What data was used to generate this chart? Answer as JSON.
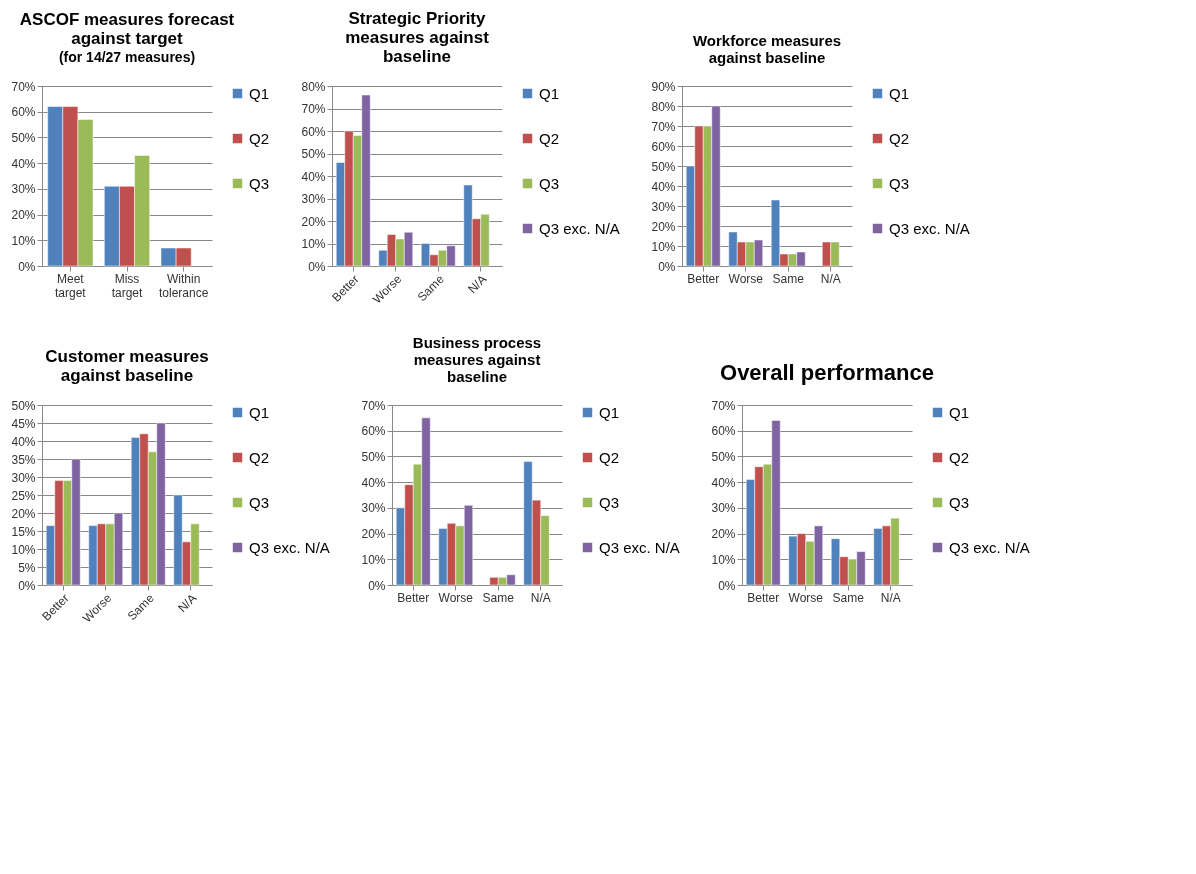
{
  "chart_data": [
    {
      "type": "bar",
      "title": "ASCOF measures forecast against target",
      "subtitle": "(for 14/27 measures)",
      "categories": [
        "Meet target",
        "Miss target",
        "Within tolerance"
      ],
      "series": [
        {
          "name": "Q1",
          "color": "#4f81bd",
          "values": [
            62,
            31,
            7
          ]
        },
        {
          "name": "Q2",
          "color": "#c0504d",
          "values": [
            62,
            31,
            7
          ]
        },
        {
          "name": "Q3",
          "color": "#9bbb59",
          "values": [
            57,
            43,
            null
          ]
        }
      ],
      "ylim": [
        0,
        70
      ],
      "yticks": [
        {
          "value": 0,
          "label": "0%"
        },
        {
          "value": 10,
          "label": "10%"
        },
        {
          "value": 20,
          "label": "20%"
        },
        {
          "value": 30,
          "label": "30%"
        },
        {
          "value": 40,
          "label": "40%"
        },
        {
          "value": 50,
          "label": "50%"
        },
        {
          "value": 60,
          "label": "60%"
        },
        {
          "value": 70,
          "label": "70%"
        }
      ],
      "grid": "y",
      "legend": "right"
    },
    {
      "type": "bar",
      "title": "Strategic Priority measures against baseline",
      "categories": [
        "Better",
        "Worse",
        "Same",
        "N/A"
      ],
      "series": [
        {
          "name": "Q1",
          "color": "#4f81bd",
          "values": [
            46,
            7,
            10,
            36
          ]
        },
        {
          "name": "Q2",
          "color": "#c0504d",
          "values": [
            60,
            14,
            5,
            21
          ]
        },
        {
          "name": "Q3",
          "color": "#9bbb59",
          "values": [
            58,
            12,
            7,
            23
          ]
        },
        {
          "name": "Q3 exc. N/A",
          "color": "#8064a2",
          "values": [
            76,
            15,
            9,
            null
          ]
        }
      ],
      "ylim": [
        0,
        80
      ],
      "yticks": [
        {
          "value": 0,
          "label": "0%"
        },
        {
          "value": 10,
          "label": "10%"
        },
        {
          "value": 20,
          "label": "20%"
        },
        {
          "value": 30,
          "label": "30%"
        },
        {
          "value": 40,
          "label": "40%"
        },
        {
          "value": 50,
          "label": "50%"
        },
        {
          "value": 60,
          "label": "60%"
        },
        {
          "value": 70,
          "label": "70%"
        },
        {
          "value": 80,
          "label": "80%"
        }
      ],
      "grid": "y",
      "legend": "right"
    },
    {
      "type": "bar",
      "title": "Workforce measures against baseline",
      "categories": [
        "Better",
        "Worse",
        "Same",
        "N/A"
      ],
      "series": [
        {
          "name": "Q1",
          "color": "#4f81bd",
          "values": [
            50,
            17,
            33,
            null
          ]
        },
        {
          "name": "Q2",
          "color": "#c0504d",
          "values": [
            70,
            12,
            6,
            12
          ]
        },
        {
          "name": "Q3",
          "color": "#9bbb59",
          "values": [
            70,
            12,
            6,
            12
          ]
        },
        {
          "name": "Q3 exc. N/A",
          "color": "#8064a2",
          "values": [
            80,
            13,
            7,
            null
          ]
        }
      ],
      "ylim": [
        0,
        90
      ],
      "yticks": [
        {
          "value": 0,
          "label": "0%"
        },
        {
          "value": 10,
          "label": "10%"
        },
        {
          "value": 20,
          "label": "20%"
        },
        {
          "value": 30,
          "label": "30%"
        },
        {
          "value": 40,
          "label": "40%"
        },
        {
          "value": 50,
          "label": "50%"
        },
        {
          "value": 60,
          "label": "60%"
        },
        {
          "value": 70,
          "label": "70%"
        },
        {
          "value": 80,
          "label": "80%"
        },
        {
          "value": 90,
          "label": "90%"
        }
      ],
      "grid": "y",
      "legend": "right"
    },
    {
      "type": "bar",
      "title": "Customer measures against baseline",
      "categories": [
        "Better",
        "Worse",
        "Same",
        "N/A"
      ],
      "series": [
        {
          "name": "Q1",
          "color": "#4f81bd",
          "values": [
            16.5,
            16.5,
            41,
            25
          ]
        },
        {
          "name": "Q2",
          "color": "#c0504d",
          "values": [
            29,
            17,
            42,
            12
          ]
        },
        {
          "name": "Q3",
          "color": "#9bbb59",
          "values": [
            29,
            17,
            37,
            17
          ]
        },
        {
          "name": "Q3 exc. N/A",
          "color": "#8064a2",
          "values": [
            35,
            20,
            45,
            null
          ]
        }
      ],
      "ylim": [
        0,
        50
      ],
      "yticks": [
        {
          "value": 0,
          "label": "0%"
        },
        {
          "value": 5,
          "label": "5%"
        },
        {
          "value": 10,
          "label": "10%"
        },
        {
          "value": 15,
          "label": "15%"
        },
        {
          "value": 20,
          "label": "20%"
        },
        {
          "value": 25,
          "label": "25%"
        },
        {
          "value": 30,
          "label": "30%"
        },
        {
          "value": 35,
          "label": "35%"
        },
        {
          "value": 40,
          "label": "40%"
        },
        {
          "value": 45,
          "label": "45%"
        },
        {
          "value": 50,
          "label": "50%"
        }
      ],
      "grid": "y",
      "legend": "right"
    },
    {
      "type": "bar",
      "title": "Business process measures against baseline",
      "categories": [
        "Better",
        "Worse",
        "Same",
        "N/A"
      ],
      "series": [
        {
          "name": "Q1",
          "color": "#4f81bd",
          "values": [
            30,
            22,
            null,
            48
          ]
        },
        {
          "name": "Q2",
          "color": "#c0504d",
          "values": [
            39,
            24,
            3,
            33
          ]
        },
        {
          "name": "Q3",
          "color": "#9bbb59",
          "values": [
            47,
            23,
            3,
            27
          ]
        },
        {
          "name": "Q3 exc. N/A",
          "color": "#8064a2",
          "values": [
            65,
            31,
            4,
            null
          ]
        }
      ],
      "ylim": [
        0,
        70
      ],
      "yticks": [
        {
          "value": 0,
          "label": "0%"
        },
        {
          "value": 10,
          "label": "10%"
        },
        {
          "value": 20,
          "label": "20%"
        },
        {
          "value": 30,
          "label": "30%"
        },
        {
          "value": 40,
          "label": "40%"
        },
        {
          "value": 50,
          "label": "50%"
        },
        {
          "value": 60,
          "label": "60%"
        },
        {
          "value": 70,
          "label": "70%"
        }
      ],
      "grid": "y",
      "legend": "right"
    },
    {
      "type": "bar",
      "title": "Overall performance",
      "categories": [
        "Better",
        "Worse",
        "Same",
        "N/A"
      ],
      "series": [
        {
          "name": "Q1",
          "color": "#4f81bd",
          "values": [
            41,
            19,
            18,
            22
          ]
        },
        {
          "name": "Q2",
          "color": "#c0504d",
          "values": [
            46,
            20,
            11,
            23
          ]
        },
        {
          "name": "Q3",
          "color": "#9bbb59",
          "values": [
            47,
            17,
            10,
            26
          ]
        },
        {
          "name": "Q3 exc. N/A",
          "color": "#8064a2",
          "values": [
            64,
            23,
            13,
            null
          ]
        }
      ],
      "ylim": [
        0,
        70
      ],
      "yticks": [
        {
          "value": 0,
          "label": "0%"
        },
        {
          "value": 10,
          "label": "10%"
        },
        {
          "value": 20,
          "label": "20%"
        },
        {
          "value": 30,
          "label": "30%"
        },
        {
          "value": 40,
          "label": "40%"
        },
        {
          "value": 50,
          "label": "50%"
        },
        {
          "value": 60,
          "label": "60%"
        },
        {
          "value": 70,
          "label": "70%"
        }
      ],
      "grid": "y",
      "legend": "right"
    }
  ]
}
